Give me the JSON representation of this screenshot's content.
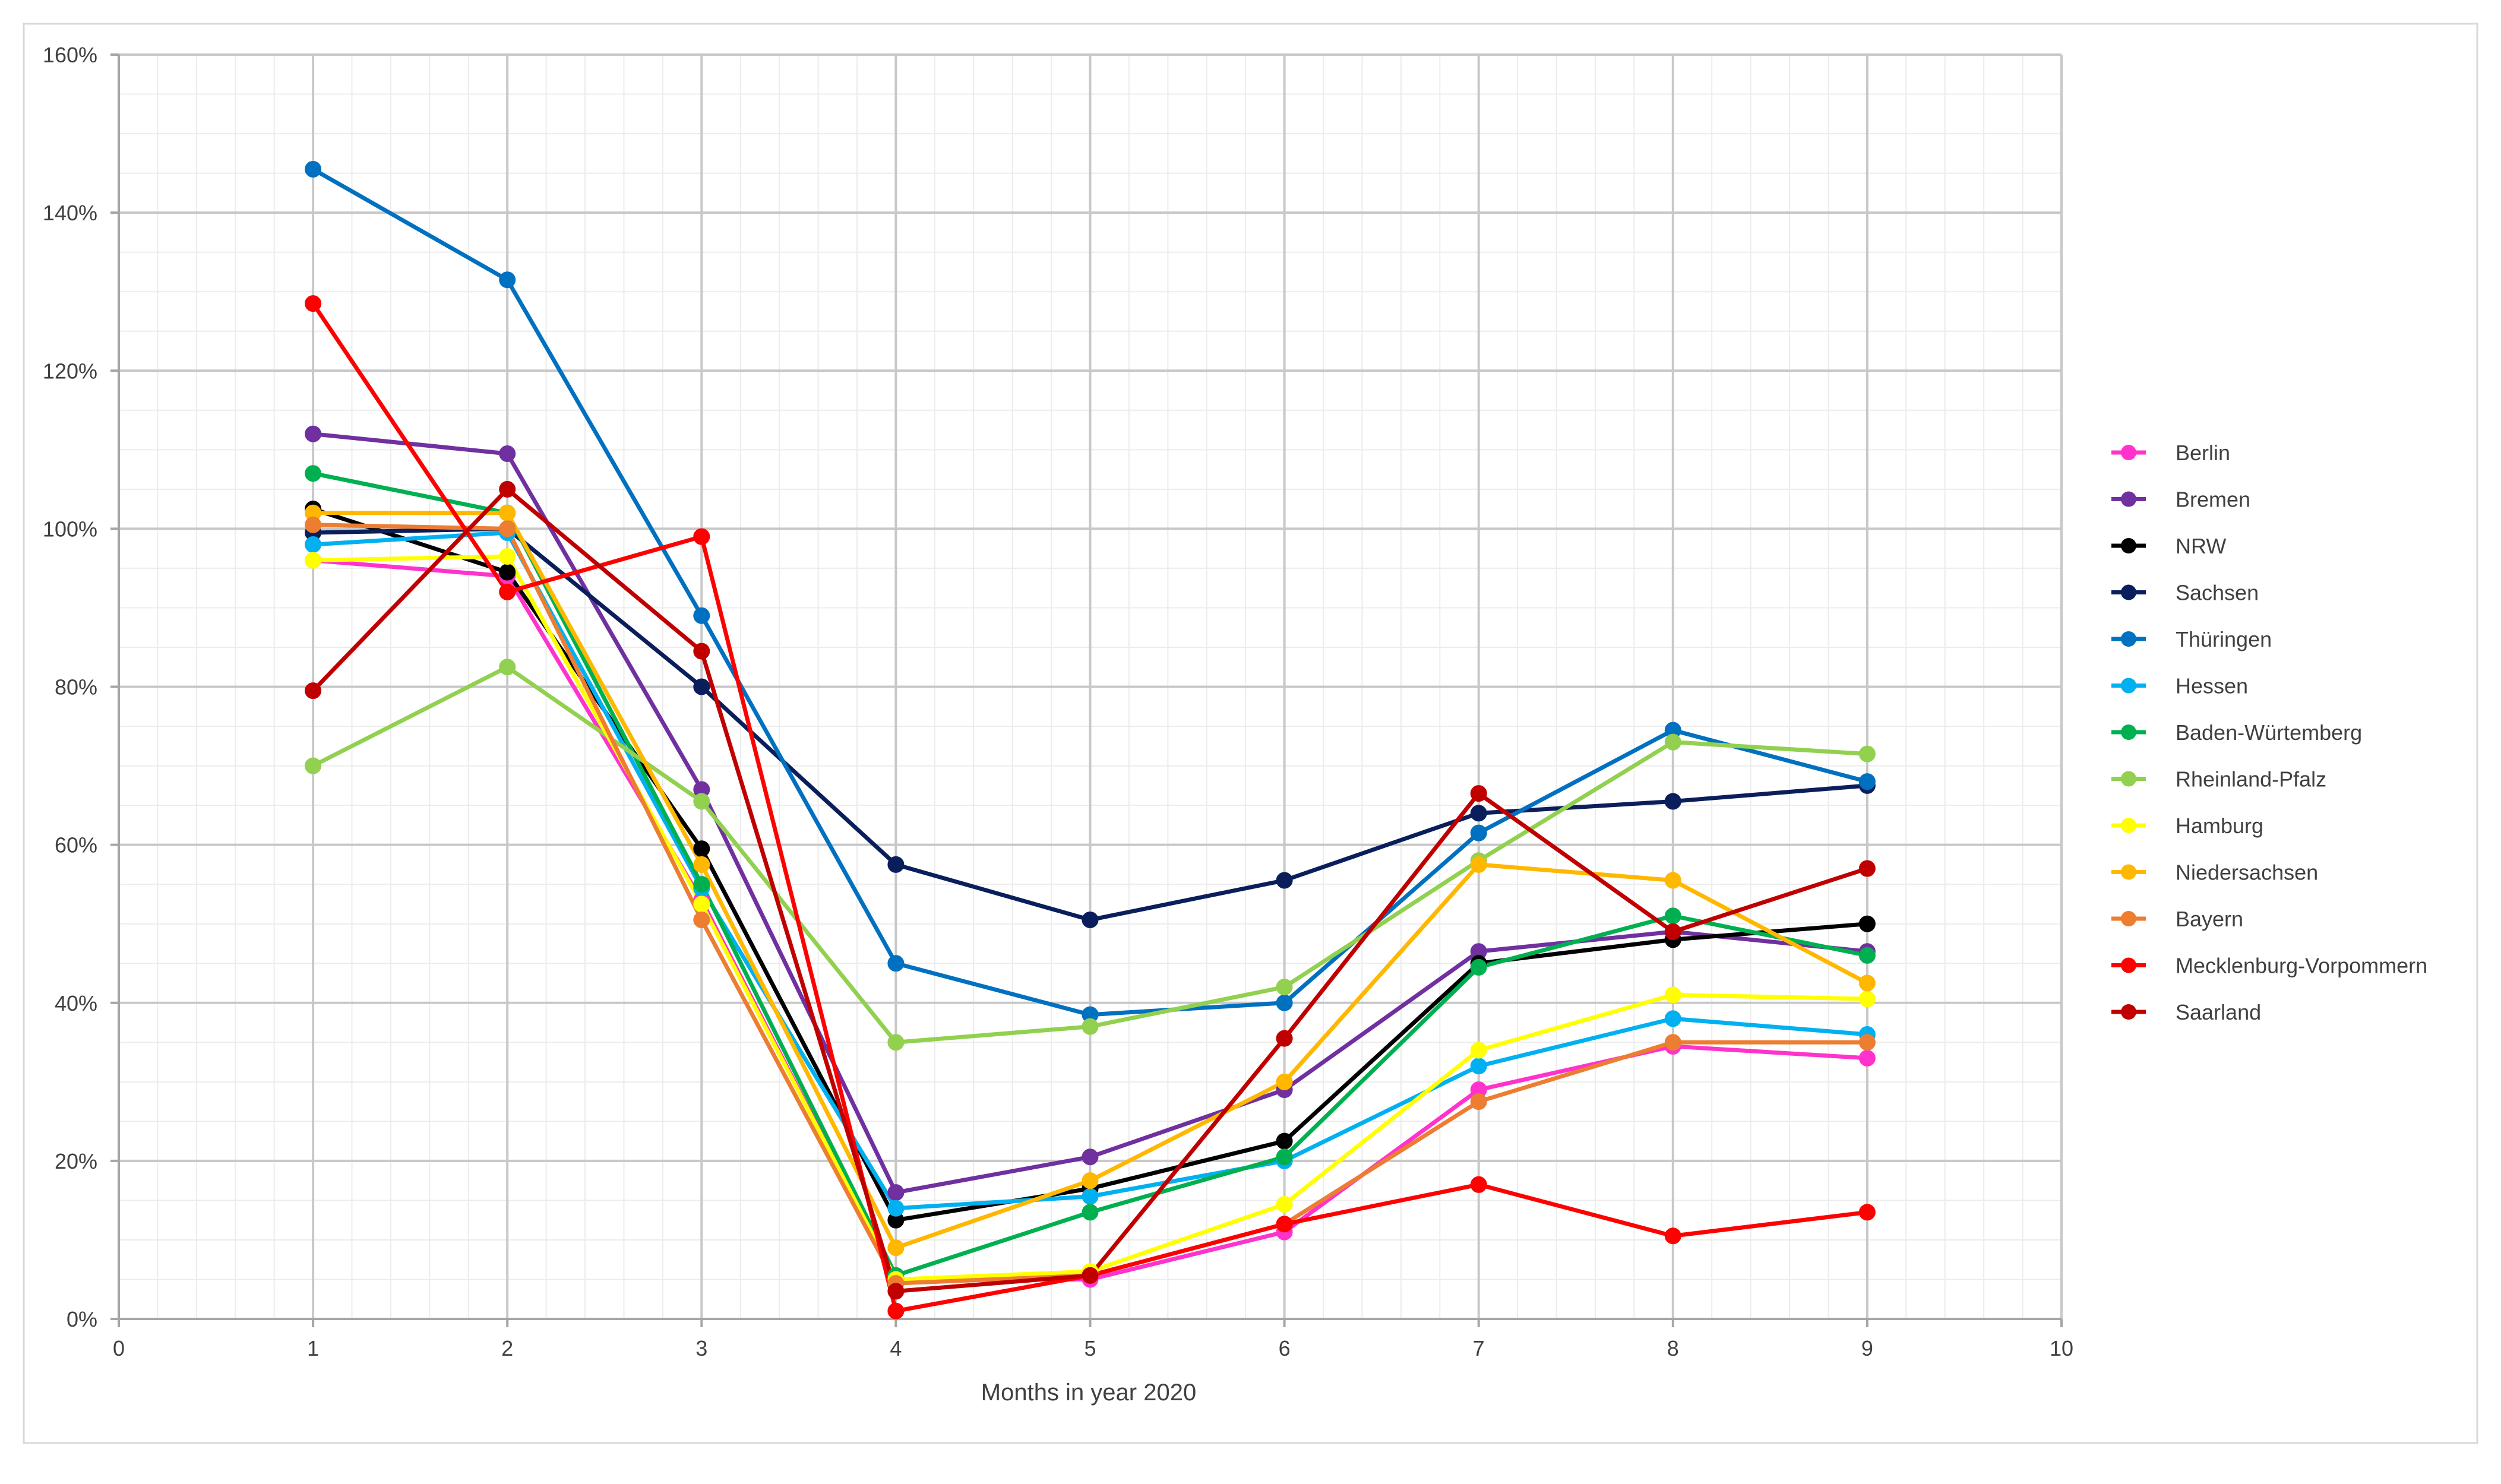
{
  "chart_data": {
    "type": "line",
    "title": "",
    "xlabel": "Months in year 2020",
    "ylabel": "",
    "xlim": [
      0,
      10
    ],
    "ylim": [
      0,
      1.6
    ],
    "x_ticks": [
      "0",
      "1",
      "2",
      "3",
      "4",
      "5",
      "6",
      "7",
      "8",
      "9",
      "10"
    ],
    "y_ticks": [
      "0%",
      "20%",
      "40%",
      "60%",
      "80%",
      "100%",
      "120%",
      "140%",
      "160%"
    ],
    "grid": true,
    "legend_position": "right",
    "x": [
      1,
      2,
      3,
      4,
      5,
      6,
      7,
      8,
      9
    ],
    "series": [
      {
        "name": "Berlin",
        "color": "#FF33CC",
        "values": [
          0.96,
          0.94,
          0.53,
          0.05,
          0.05,
          0.11,
          0.29,
          0.345,
          0.33
        ]
      },
      {
        "name": "Bremen",
        "color": "#7030A0",
        "values": [
          1.12,
          1.095,
          0.67,
          0.16,
          0.205,
          0.29,
          0.465,
          0.49,
          0.465
        ]
      },
      {
        "name": "NRW",
        "color": "#000000",
        "values": [
          1.025,
          0.945,
          0.595,
          0.125,
          0.165,
          0.225,
          0.45,
          0.48,
          0.5
        ]
      },
      {
        "name": "Sachsen",
        "color": "#0A1E5C",
        "values": [
          0.995,
          1.0,
          0.8,
          0.575,
          0.505,
          0.555,
          0.64,
          0.655,
          0.675
        ]
      },
      {
        "name": "Thüringen",
        "color": "#0070C0",
        "values": [
          1.455,
          1.315,
          0.89,
          0.45,
          0.385,
          0.4,
          0.615,
          0.745,
          0.68
        ]
      },
      {
        "name": "Hessen",
        "color": "#00B0F0",
        "values": [
          0.98,
          0.995,
          0.545,
          0.14,
          0.155,
          0.2,
          0.32,
          0.38,
          0.36
        ]
      },
      {
        "name": "Baden-Würtemberg",
        "color": "#00B050",
        "values": [
          1.07,
          1.02,
          0.55,
          0.055,
          0.135,
          0.205,
          0.445,
          0.51,
          0.46
        ]
      },
      {
        "name": "Rheinland-Pfalz",
        "color": "#92D050",
        "values": [
          0.7,
          0.825,
          0.655,
          0.35,
          0.37,
          0.42,
          0.58,
          0.73,
          0.715
        ]
      },
      {
        "name": "Hamburg",
        "color": "#FFFF00",
        "values": [
          0.96,
          0.965,
          0.525,
          0.05,
          0.06,
          0.145,
          0.34,
          0.41,
          0.405
        ]
      },
      {
        "name": "Niedersachsen",
        "color": "#FFB700",
        "values": [
          1.02,
          1.02,
          0.575,
          0.09,
          0.175,
          0.3,
          0.575,
          0.555,
          0.425
        ]
      },
      {
        "name": "Bayern",
        "color": "#ED7D31",
        "values": [
          1.005,
          1.0,
          0.505,
          0.045,
          0.055,
          0.12,
          0.275,
          0.35,
          0.35
        ]
      },
      {
        "name": "Mecklenburg-Vorpommern",
        "color": "#FF0000",
        "values": [
          1.285,
          0.92,
          0.99,
          0.01,
          0.055,
          0.12,
          0.17,
          0.105,
          0.135
        ]
      },
      {
        "name": "Saarland",
        "color": "#C00000",
        "values": [
          0.795,
          1.05,
          0.845,
          0.035,
          0.055,
          0.355,
          0.665,
          0.49,
          0.57
        ]
      }
    ]
  }
}
